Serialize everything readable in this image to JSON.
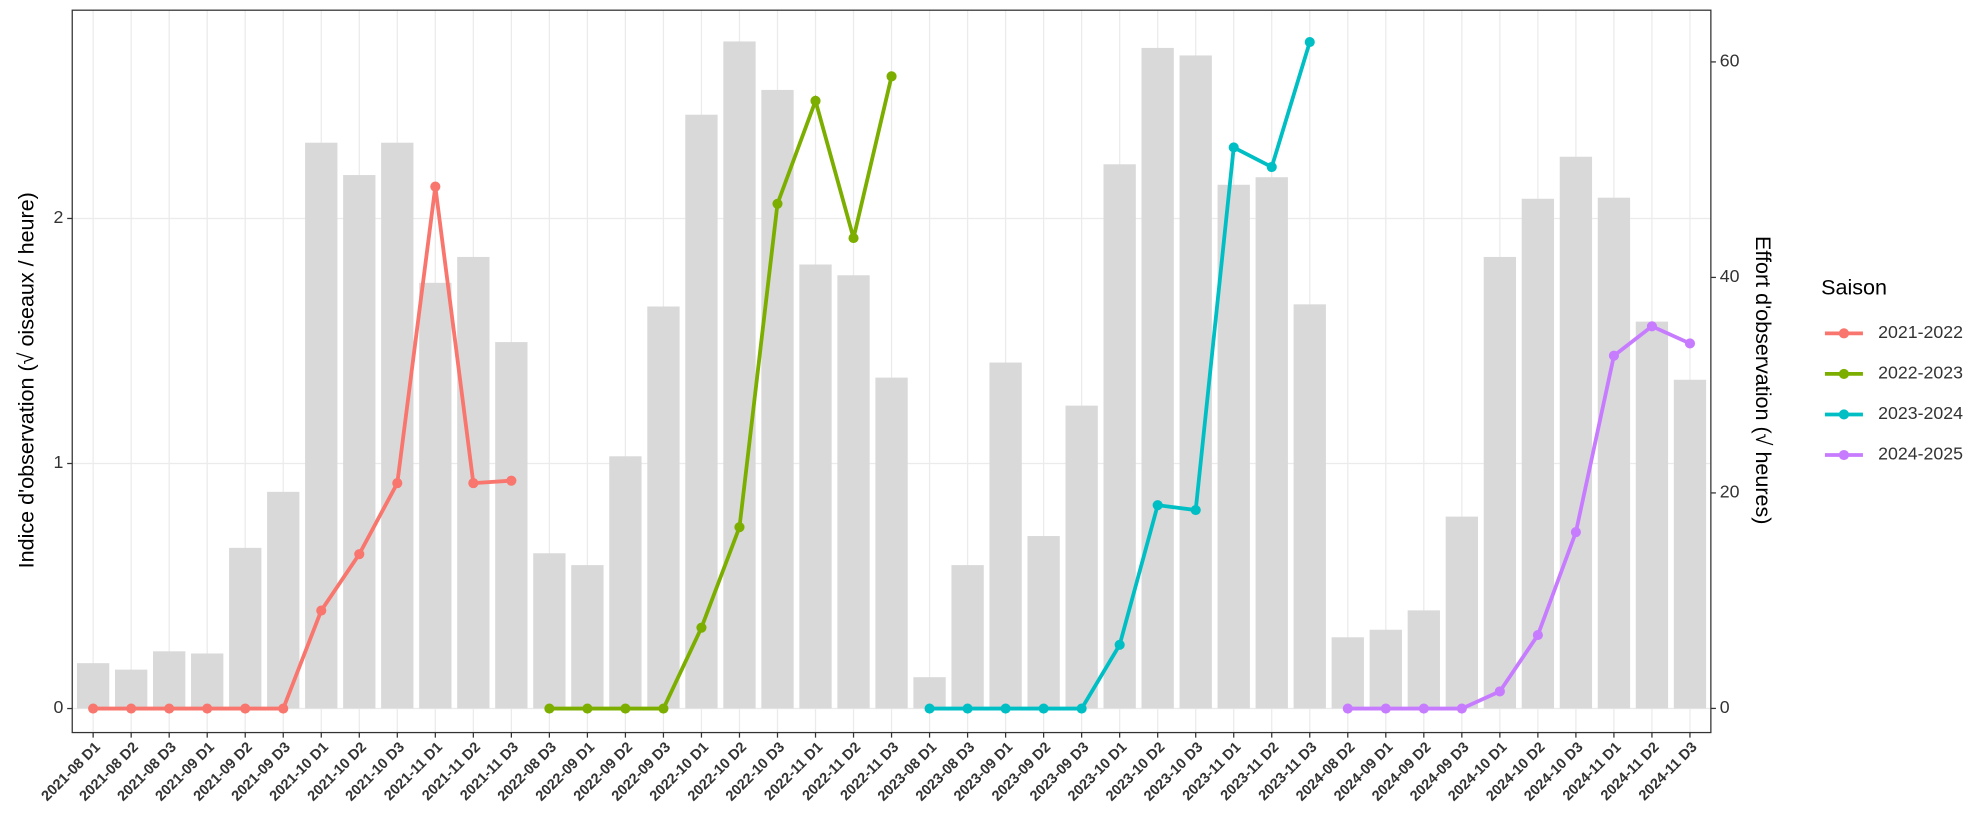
{
  "chart_data": {
    "type": "combo",
    "y_label": "Indice d'observation (√ oiseaux / heure)",
    "y2_label": "Effort d'observation (√ heures)",
    "legend_title": "Saison",
    "legend": "right",
    "grid": true,
    "categories": [
      "2021-08 D1",
      "2021-08 D2",
      "2021-08 D3",
      "2021-09 D1",
      "2021-09 D2",
      "2021-09 D3",
      "2021-10 D1",
      "2021-10 D2",
      "2021-10 D3",
      "2021-11 D1",
      "2021-11 D2",
      "2021-11 D3",
      "2022-08 D3",
      "2022-09 D1",
      "2022-09 D2",
      "2022-09 D3",
      "2022-10 D1",
      "2022-10 D2",
      "2022-10 D3",
      "2022-11 D1",
      "2022-11 D2",
      "2022-11 D3",
      "2023-08 D1",
      "2023-08 D3",
      "2023-09 D1",
      "2023-09 D2",
      "2023-09 D3",
      "2023-10 D1",
      "2023-10 D2",
      "2023-10 D3",
      "2023-11 D1",
      "2023-11 D2",
      "2023-11 D3",
      "2024-08 D2",
      "2024-09 D1",
      "2024-09 D2",
      "2024-09 D3",
      "2024-10 D1",
      "2024-10 D2",
      "2024-10 D3",
      "2024-11 D1",
      "2024-11 D2",
      "2024-11 D3"
    ],
    "ylim": [
      -0.098,
      2.85
    ],
    "yticks": [
      0,
      1,
      2
    ],
    "y2lim": [
      -2.24,
      64.8
    ],
    "y2ticks": [
      0,
      20,
      40,
      60
    ],
    "series": [
      {
        "type": "bar",
        "axis": "y2",
        "color": "#d9d9d9",
        "values": [
          4.2,
          3.6,
          5.3,
          5.1,
          14.9,
          20.1,
          52.5,
          49.5,
          52.5,
          39.5,
          41.9,
          34,
          14.4,
          13.3,
          23.4,
          37.3,
          55.1,
          61.9,
          57.4,
          41.2,
          40.2,
          30.7,
          2.9,
          13.3,
          32.1,
          16,
          28.1,
          50.5,
          61.3,
          60.6,
          48.6,
          49.3,
          37.5,
          6.6,
          7.3,
          9.1,
          17.8,
          41.9,
          47.3,
          51.2,
          47.4,
          35.9,
          30.5
        ]
      },
      {
        "type": "line",
        "name": "2021-2022",
        "color": "#F8766D",
        "values": [
          0,
          0,
          0,
          0,
          0,
          0,
          0.4,
          0.63,
          0.92,
          2.13,
          0.92,
          0.93,
          null,
          null,
          null,
          null,
          null,
          null,
          null,
          null,
          null,
          null,
          null,
          null,
          null,
          null,
          null,
          null,
          null,
          null,
          null,
          null,
          null,
          null,
          null,
          null,
          null,
          null,
          null,
          null,
          null,
          null,
          null
        ]
      },
      {
        "type": "line",
        "name": "2022-2023",
        "color": "#7CAE00",
        "values": [
          null,
          null,
          null,
          null,
          null,
          null,
          null,
          null,
          null,
          null,
          null,
          null,
          0,
          0,
          0,
          0,
          0.33,
          0.74,
          2.06,
          2.48,
          1.92,
          2.58,
          null,
          null,
          null,
          null,
          null,
          null,
          null,
          null,
          null,
          null,
          null,
          null,
          null,
          null,
          null,
          null,
          null,
          null,
          null,
          null,
          null
        ]
      },
      {
        "type": "line",
        "name": "2023-2024",
        "color": "#00BFC4",
        "values": [
          null,
          null,
          null,
          null,
          null,
          null,
          null,
          null,
          null,
          null,
          null,
          null,
          null,
          null,
          null,
          null,
          null,
          null,
          null,
          null,
          null,
          null,
          0,
          0,
          0,
          0,
          0,
          0.26,
          0.83,
          0.81,
          2.29,
          2.21,
          2.72,
          null,
          null,
          null,
          null,
          null,
          null,
          null,
          null,
          null,
          null
        ]
      },
      {
        "type": "line",
        "name": "2024-2025",
        "color": "#C77CFF",
        "values": [
          null,
          null,
          null,
          null,
          null,
          null,
          null,
          null,
          null,
          null,
          null,
          null,
          null,
          null,
          null,
          null,
          null,
          null,
          null,
          null,
          null,
          null,
          null,
          null,
          null,
          null,
          null,
          null,
          null,
          null,
          null,
          null,
          null,
          0,
          0,
          0,
          0,
          0.07,
          0.3,
          0.72,
          1.44,
          1.56,
          1.49
        ]
      }
    ]
  }
}
